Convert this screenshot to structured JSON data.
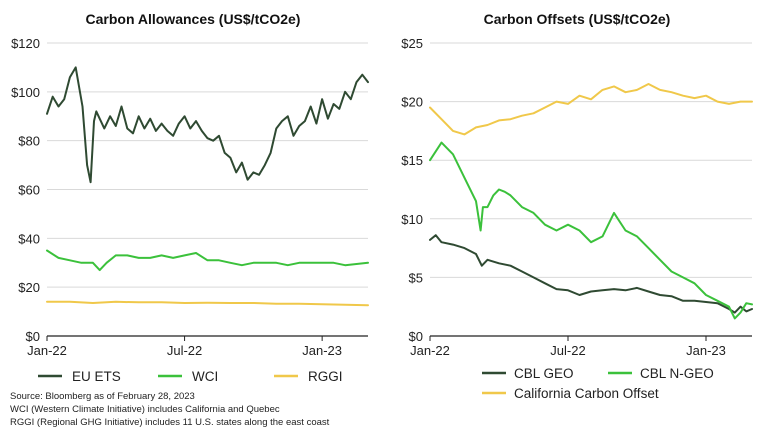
{
  "colors": {
    "eu_ets": "#2f4a32",
    "wci": "#3bc13b",
    "rggi": "#f0c84a",
    "cbl_geo": "#2f4a32",
    "cbl_ngeo": "#3bc13b",
    "california": "#f0c84a",
    "axis": "#222222",
    "grid": "#d9d9d9"
  },
  "chart_data": [
    {
      "type": "line",
      "title": "Carbon Allowances (US$/tCO2e)",
      "xlabel": "",
      "ylabel": "",
      "xlim": [
        0,
        14
      ],
      "ylim": [
        0,
        120
      ],
      "y_ticks": [
        0,
        20,
        40,
        60,
        80,
        100,
        120
      ],
      "y_tick_labels": [
        "$0",
        "$20",
        "$40",
        "$60",
        "$80",
        "$100",
        "$120"
      ],
      "x_ticks": [
        0,
        6,
        12
      ],
      "x_tick_labels": [
        "Jan-22",
        "Jul-22",
        "Jan-23"
      ],
      "legend": "bottom",
      "series": [
        {
          "name": "EU ETS",
          "color_key": "eu_ets",
          "x": [
            0,
            0.25,
            0.5,
            0.75,
            1.0,
            1.25,
            1.4,
            1.55,
            1.75,
            1.9,
            2.05,
            2.15,
            2.3,
            2.5,
            2.75,
            3.0,
            3.25,
            3.5,
            3.75,
            4.0,
            4.25,
            4.5,
            4.75,
            5.0,
            5.25,
            5.5,
            5.75,
            6.0,
            6.25,
            6.5,
            6.75,
            7.0,
            7.25,
            7.5,
            7.75,
            8.0,
            8.25,
            8.5,
            8.75,
            9.0,
            9.25,
            9.5,
            9.75,
            10.0,
            10.25,
            10.5,
            10.75,
            11.0,
            11.25,
            11.5,
            11.75,
            12.0,
            12.25,
            12.5,
            12.75,
            13.0,
            13.25,
            13.5,
            13.75,
            14.0
          ],
          "values": [
            91,
            98,
            94,
            97,
            106,
            110,
            102,
            94,
            70,
            63,
            88,
            92,
            89,
            85,
            90,
            86,
            94,
            85,
            83,
            90,
            85,
            89,
            84,
            87,
            84,
            82,
            87,
            90,
            85,
            88,
            84,
            81,
            80,
            82,
            75,
            73,
            67,
            71,
            64,
            67,
            66,
            70,
            75,
            85,
            88,
            90,
            82,
            86,
            88,
            94,
            87,
            97,
            89,
            95,
            93,
            100,
            97,
            104,
            107,
            104
          ]
        },
        {
          "name": "WCI",
          "color_key": "wci",
          "x": [
            0,
            0.5,
            1.0,
            1.5,
            2.0,
            2.3,
            2.6,
            3.0,
            3.5,
            4.0,
            4.5,
            5.0,
            5.5,
            6.0,
            6.5,
            7.0,
            7.5,
            8.0,
            8.5,
            9.0,
            9.5,
            10.0,
            10.5,
            11.0,
            11.5,
            12.0,
            12.5,
            13.0,
            13.5,
            14.0
          ],
          "values": [
            35,
            32,
            31,
            30,
            30,
            27,
            30,
            33,
            33,
            32,
            32,
            33,
            32,
            33,
            34,
            31,
            31,
            30,
            29,
            30,
            30,
            30,
            29,
            30,
            30,
            30,
            30,
            29,
            29.5,
            30
          ]
        },
        {
          "name": "RGGI",
          "color_key": "rggi",
          "x": [
            0,
            1,
            2,
            3,
            4,
            5,
            6,
            7,
            8,
            9,
            10,
            11,
            12,
            13,
            14
          ],
          "values": [
            14,
            14,
            13.5,
            14,
            13.8,
            13.8,
            13.5,
            13.6,
            13.5,
            13.5,
            13.2,
            13.2,
            13,
            12.8,
            12.6
          ]
        }
      ]
    },
    {
      "type": "line",
      "title": "Carbon Offsets (US$/tCO2e)",
      "xlabel": "",
      "ylabel": "",
      "xlim": [
        0,
        14
      ],
      "ylim": [
        0,
        25
      ],
      "y_ticks": [
        0,
        5,
        10,
        15,
        20,
        25
      ],
      "y_tick_labels": [
        "$0",
        "$5",
        "$10",
        "$15",
        "$20",
        "$25"
      ],
      "x_ticks": [
        0,
        6,
        12
      ],
      "x_tick_labels": [
        "Jan-22",
        "Jul-22",
        "Jan-23"
      ],
      "legend": "bottom",
      "series": [
        {
          "name": "CBL GEO",
          "color_key": "cbl_geo",
          "x": [
            0,
            0.25,
            0.5,
            1.0,
            1.5,
            2.0,
            2.25,
            2.5,
            3.0,
            3.5,
            4.0,
            4.5,
            5.0,
            5.5,
            6.0,
            6.5,
            7.0,
            7.5,
            8.0,
            8.5,
            9.0,
            9.5,
            10.0,
            10.5,
            11.0,
            11.5,
            12.0,
            12.5,
            13.0,
            13.25,
            13.5,
            13.75,
            14.0
          ],
          "values": [
            8.2,
            8.6,
            8.0,
            7.8,
            7.5,
            7.0,
            6.0,
            6.5,
            6.2,
            6.0,
            5.5,
            5.0,
            4.5,
            4.0,
            3.9,
            3.5,
            3.8,
            3.9,
            4.0,
            3.9,
            4.1,
            3.8,
            3.5,
            3.4,
            3.0,
            3.0,
            2.9,
            2.8,
            2.3,
            2.0,
            2.5,
            2.1,
            2.3
          ]
        },
        {
          "name": "CBL N-GEO",
          "color_key": "cbl_ngeo",
          "x": [
            0,
            0.5,
            1.0,
            1.5,
            2.0,
            2.2,
            2.3,
            2.5,
            2.75,
            3.0,
            3.25,
            3.5,
            4.0,
            4.5,
            5.0,
            5.5,
            6.0,
            6.5,
            7.0,
            7.5,
            8.0,
            8.5,
            9.0,
            9.5,
            10.0,
            10.5,
            11.0,
            11.5,
            12.0,
            12.5,
            13.0,
            13.25,
            13.5,
            13.75,
            14.0
          ],
          "values": [
            15.0,
            16.5,
            15.5,
            13.5,
            11.5,
            9.0,
            11.0,
            11.0,
            12.0,
            12.5,
            12.3,
            12.0,
            11.0,
            10.5,
            9.5,
            9.0,
            9.5,
            9.0,
            8.0,
            8.5,
            10.5,
            9.0,
            8.5,
            7.5,
            6.5,
            5.5,
            5.0,
            4.5,
            3.5,
            3.0,
            2.5,
            1.5,
            2.0,
            2.8,
            2.7
          ]
        },
        {
          "name": "California Carbon Offset",
          "color_key": "california",
          "x": [
            0,
            0.5,
            1.0,
            1.5,
            2.0,
            2.5,
            3.0,
            3.5,
            4.0,
            4.5,
            5.0,
            5.5,
            6.0,
            6.5,
            7.0,
            7.5,
            8.0,
            8.5,
            9.0,
            9.5,
            10.0,
            10.5,
            11.0,
            11.5,
            12.0,
            12.5,
            13.0,
            13.5,
            14.0
          ],
          "values": [
            19.5,
            18.5,
            17.5,
            17.2,
            17.8,
            18.0,
            18.4,
            18.5,
            18.8,
            19.0,
            19.5,
            20.0,
            19.8,
            20.5,
            20.2,
            21.0,
            21.3,
            20.8,
            21.0,
            21.5,
            21.0,
            20.8,
            20.5,
            20.3,
            20.5,
            20.0,
            19.8,
            20.0,
            20.0
          ]
        }
      ]
    }
  ],
  "source_notes": [
    "Source: Bloomberg as of February 28, 2023",
    "WCI (Western Climate Initiative) includes California and Quebec",
    "RGGI (Regional GHG Initiative) includes 11 U.S. states along the east coast"
  ]
}
